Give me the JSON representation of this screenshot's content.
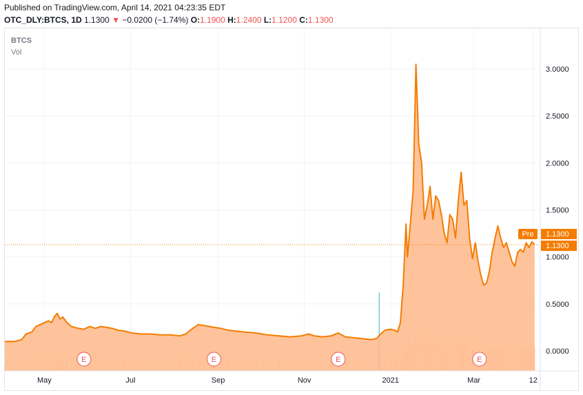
{
  "header": {
    "published": "Published on TradingView.com, April 14, 2021 04:23:35 EDT",
    "symbol": "OTC_DLY:BTCS, 1D",
    "last": "1.1300",
    "arrow": "▼",
    "change": "−0.0200 (−1.74%)",
    "o_label": "O:",
    "o_value": "1.1900",
    "h_label": "H:",
    "h_value": "1.2400",
    "l_label": "L:",
    "l_value": "1.1200",
    "c_label": "C:",
    "c_value": "1.1300"
  },
  "legend": {
    "series": "BTCS",
    "volume": "Vol"
  },
  "price_tag": {
    "label": "Pre",
    "pre_value": "1.1300",
    "close_value": "1.1300"
  },
  "earnings_marker": "E",
  "colors": {
    "line": "#f57c00",
    "area": "#ffb98a",
    "down": "#ef5350",
    "volume": "#f7a070",
    "spike": "#4fc3c7"
  },
  "chart_data": {
    "type": "area",
    "title": "",
    "xlabel": "",
    "ylabel": "",
    "ylim": [
      -0.2,
      3.4
    ],
    "y_ticks": [
      "3.0000",
      "2.5000",
      "2.0000",
      "1.5000",
      "1.0000",
      "0.5000",
      "0.0000"
    ],
    "x_ticks": [
      {
        "label": "May",
        "x": "2020-05-01"
      },
      {
        "label": "Jul",
        "x": "2020-07-01"
      },
      {
        "label": "Sep",
        "x": "2020-09-01"
      },
      {
        "label": "Nov",
        "x": "2020-11-01"
      },
      {
        "label": "2021",
        "x": "2021-01-01"
      },
      {
        "label": "Mar",
        "x": "2021-03-01"
      },
      {
        "label": "12",
        "x": "2021-04-12"
      }
    ],
    "earnings_dates": [
      "2020-05-29",
      "2020-08-29",
      "2020-11-25",
      "2021-03-05"
    ],
    "series": [
      {
        "points": [
          [
            "2020-04-03",
            0.1
          ],
          [
            "2020-04-10",
            0.1
          ],
          [
            "2020-04-15",
            0.12
          ],
          [
            "2020-04-18",
            0.18
          ],
          [
            "2020-04-22",
            0.2
          ],
          [
            "2020-04-25",
            0.26
          ],
          [
            "2020-04-28",
            0.28
          ],
          [
            "2020-05-01",
            0.3
          ],
          [
            "2020-05-04",
            0.32
          ],
          [
            "2020-05-06",
            0.3
          ],
          [
            "2020-05-08",
            0.36
          ],
          [
            "2020-05-10",
            0.4
          ],
          [
            "2020-05-12",
            0.34
          ],
          [
            "2020-05-14",
            0.36
          ],
          [
            "2020-05-17",
            0.3
          ],
          [
            "2020-05-20",
            0.26
          ],
          [
            "2020-05-25",
            0.24
          ],
          [
            "2020-05-29",
            0.23
          ],
          [
            "2020-06-02",
            0.26
          ],
          [
            "2020-06-06",
            0.24
          ],
          [
            "2020-06-10",
            0.26
          ],
          [
            "2020-06-14",
            0.25
          ],
          [
            "2020-06-18",
            0.24
          ],
          [
            "2020-06-22",
            0.22
          ],
          [
            "2020-06-27",
            0.21
          ],
          [
            "2020-07-02",
            0.19
          ],
          [
            "2020-07-08",
            0.18
          ],
          [
            "2020-07-15",
            0.18
          ],
          [
            "2020-07-22",
            0.17
          ],
          [
            "2020-07-29",
            0.17
          ],
          [
            "2020-08-05",
            0.16
          ],
          [
            "2020-08-09",
            0.18
          ],
          [
            "2020-08-14",
            0.24
          ],
          [
            "2020-08-18",
            0.28
          ],
          [
            "2020-08-22",
            0.27
          ],
          [
            "2020-08-26",
            0.26
          ],
          [
            "2020-08-29",
            0.25
          ],
          [
            "2020-09-03",
            0.24
          ],
          [
            "2020-09-08",
            0.22
          ],
          [
            "2020-09-14",
            0.21
          ],
          [
            "2020-09-20",
            0.2
          ],
          [
            "2020-09-28",
            0.19
          ],
          [
            "2020-10-06",
            0.17
          ],
          [
            "2020-10-14",
            0.16
          ],
          [
            "2020-10-22",
            0.15
          ],
          [
            "2020-10-30",
            0.16
          ],
          [
            "2020-11-04",
            0.18
          ],
          [
            "2020-11-08",
            0.16
          ],
          [
            "2020-11-14",
            0.15
          ],
          [
            "2020-11-20",
            0.16
          ],
          [
            "2020-11-25",
            0.19
          ],
          [
            "2020-11-30",
            0.15
          ],
          [
            "2020-12-06",
            0.14
          ],
          [
            "2020-12-12",
            0.13
          ],
          [
            "2020-12-18",
            0.12
          ],
          [
            "2020-12-22",
            0.13
          ],
          [
            "2020-12-25",
            0.18
          ],
          [
            "2020-12-28",
            0.22
          ],
          [
            "2021-01-01",
            0.23
          ],
          [
            "2021-01-04",
            0.22
          ],
          [
            "2021-01-06",
            0.2
          ],
          [
            "2021-01-08",
            0.3
          ],
          [
            "2021-01-10",
            0.7
          ],
          [
            "2021-01-12",
            1.35
          ],
          [
            "2021-01-13",
            1.0
          ],
          [
            "2021-01-15",
            1.35
          ],
          [
            "2021-01-17",
            1.7
          ],
          [
            "2021-01-19",
            3.05
          ],
          [
            "2021-01-21",
            2.2
          ],
          [
            "2021-01-23",
            2.0
          ],
          [
            "2021-01-25",
            1.4
          ],
          [
            "2021-01-27",
            1.55
          ],
          [
            "2021-01-29",
            1.75
          ],
          [
            "2021-01-31",
            1.4
          ],
          [
            "2021-02-02",
            1.65
          ],
          [
            "2021-02-04",
            1.6
          ],
          [
            "2021-02-06",
            1.45
          ],
          [
            "2021-02-08",
            1.25
          ],
          [
            "2021-02-10",
            1.15
          ],
          [
            "2021-02-12",
            1.45
          ],
          [
            "2021-02-14",
            1.4
          ],
          [
            "2021-02-16",
            1.2
          ],
          [
            "2021-02-18",
            1.6
          ],
          [
            "2021-02-20",
            1.9
          ],
          [
            "2021-02-22",
            1.55
          ],
          [
            "2021-02-24",
            1.6
          ],
          [
            "2021-02-26",
            1.2
          ],
          [
            "2021-02-28",
            0.98
          ],
          [
            "2021-03-02",
            1.15
          ],
          [
            "2021-03-04",
            0.95
          ],
          [
            "2021-03-06",
            0.8
          ],
          [
            "2021-03-08",
            0.7
          ],
          [
            "2021-03-10",
            0.72
          ],
          [
            "2021-03-12",
            0.85
          ],
          [
            "2021-03-14",
            1.05
          ],
          [
            "2021-03-16",
            1.2
          ],
          [
            "2021-03-18",
            1.33
          ],
          [
            "2021-03-20",
            1.2
          ],
          [
            "2021-03-22",
            1.1
          ],
          [
            "2021-03-24",
            1.15
          ],
          [
            "2021-03-26",
            1.05
          ],
          [
            "2021-03-28",
            0.95
          ],
          [
            "2021-03-30",
            0.9
          ],
          [
            "2021-04-01",
            1.05
          ],
          [
            "2021-04-03",
            1.08
          ],
          [
            "2021-04-05",
            1.05
          ],
          [
            "2021-04-07",
            1.15
          ],
          [
            "2021-04-09",
            1.1
          ],
          [
            "2021-04-11",
            1.16
          ],
          [
            "2021-04-13",
            1.13
          ]
        ]
      }
    ],
    "volume_spikes": [
      [
        "2020-12-24",
        0.62
      ]
    ]
  }
}
